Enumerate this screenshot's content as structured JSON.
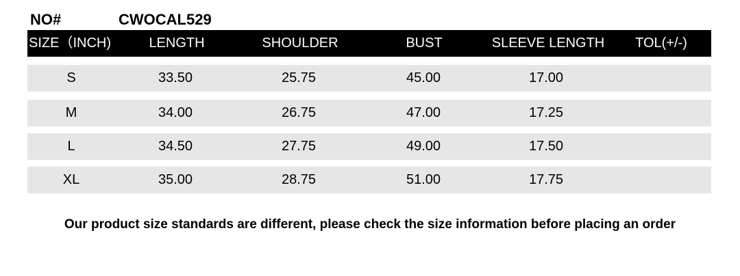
{
  "header": {
    "no_label": "NO#",
    "product_code": "CWOCAL529"
  },
  "table": {
    "columns": [
      "SIZE（INCH)",
      "LENGTH",
      "SHOULDER",
      "BUST",
      "SLEEVE LENGTH",
      "TOL(+/-)"
    ],
    "rows": [
      [
        "S",
        "33.50",
        "25.75",
        "45.00",
        "17.00",
        ""
      ],
      [
        "M",
        "34.00",
        "26.75",
        "47.00",
        "17.25",
        ""
      ],
      [
        "L",
        "34.50",
        "27.75",
        "49.00",
        "17.50",
        ""
      ],
      [
        "XL",
        "35.00",
        "28.75",
        "51.00",
        "17.75",
        ""
      ]
    ]
  },
  "footer_note": "Our product size standards are different, please check the size information before placing an order",
  "colors": {
    "header_bg": "#000000",
    "row_bg": "#e6e6e6"
  }
}
